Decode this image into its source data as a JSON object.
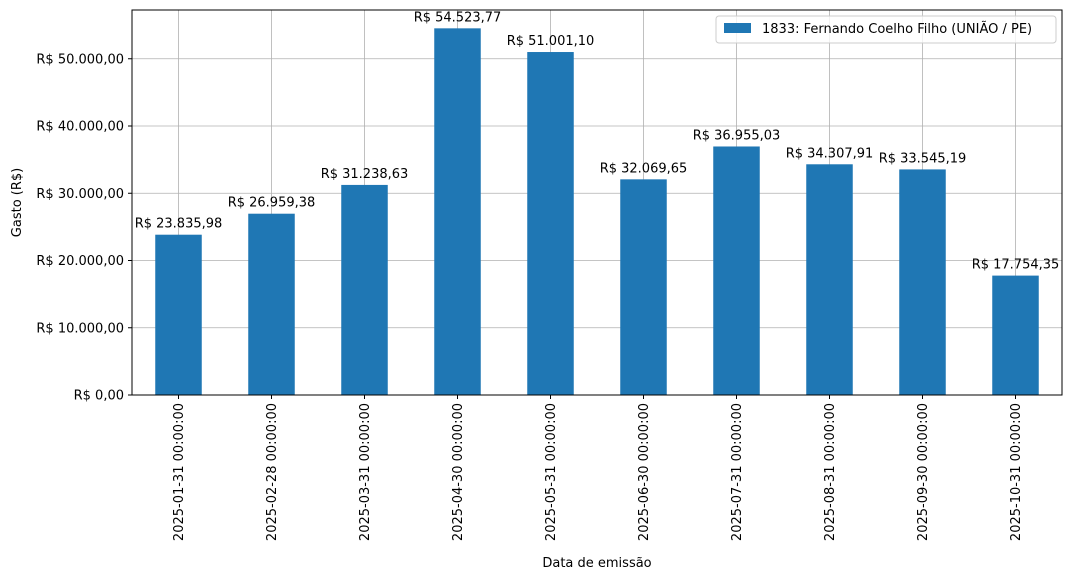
{
  "chart_data": {
    "type": "bar",
    "title": "",
    "xlabel": "Data de emissão",
    "ylabel": "Gasto (R$)",
    "ylim": [
      0,
      57250
    ],
    "y_ticks": [
      0,
      10000,
      20000,
      30000,
      40000,
      50000
    ],
    "y_tick_labels": [
      "R$ 0,00",
      "R$ 10.000,00",
      "R$ 20.000,00",
      "R$ 30.000,00",
      "R$ 40.000,00",
      "R$ 50.000,00"
    ],
    "grid": true,
    "legend_position": "top-right",
    "color": "#1f77b4",
    "categories": [
      "2025-01-31 00:00:00",
      "2025-02-28 00:00:00",
      "2025-03-31 00:00:00",
      "2025-04-30 00:00:00",
      "2025-05-31 00:00:00",
      "2025-06-30 00:00:00",
      "2025-07-31 00:00:00",
      "2025-08-31 00:00:00",
      "2025-09-30 00:00:00",
      "2025-10-31 00:00:00"
    ],
    "series": [
      {
        "name": "1833: Fernando Coelho Filho (UNIÃO / PE)",
        "values": [
          23835.98,
          26959.38,
          31238.63,
          54523.77,
          51001.1,
          32069.65,
          36955.03,
          34307.91,
          33545.19,
          17754.35
        ]
      }
    ],
    "data_labels": [
      "R$ 23.835,98",
      "R$ 26.959,38",
      "R$ 31.238,63",
      "R$ 54.523,77",
      "R$ 51.001,10",
      "R$ 32.069,65",
      "R$ 36.955,03",
      "R$ 34.307,91",
      "R$ 33.545,19",
      "R$ 17.754,35"
    ]
  }
}
